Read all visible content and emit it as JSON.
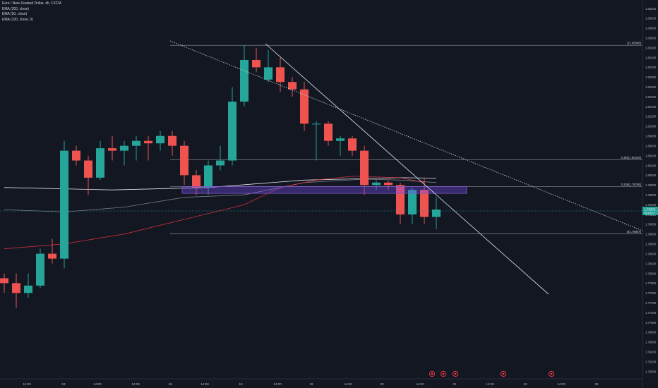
{
  "chart_data": {
    "type": "candlestick",
    "title": "Euro / New Zealand Dollar, 4h, FXCM",
    "indicators": [
      "EMA (200, close)",
      "EMA (50, close)",
      "EMA (100, close, 0)"
    ],
    "y_ticks": [
      "1.83400",
      "1.83200",
      "1.83000",
      "1.82800",
      "1.82600",
      "1.82400",
      "1.82200",
      "1.82000",
      "1.81800",
      "1.81600",
      "1.81400",
      "1.81200",
      "1.81000",
      "1.80800",
      "1.80600",
      "1.80400",
      "1.80200",
      "1.80000",
      "1.79800",
      "1.79600",
      "1.79400",
      "1.79200",
      "1.79000",
      "1.78800",
      "1.78600",
      "1.78400",
      "1.78200",
      "1.78000",
      "1.77800",
      "1.77600",
      "1.77400",
      "1.77200",
      "1.77000",
      "1.76800",
      "1.76600",
      "1.76400",
      "1.76200",
      "1.76000"
    ],
    "x_ticks": [
      "14:00",
      "13",
      "14:00",
      "14:00",
      "15",
      "14:00",
      "18",
      "14:00",
      "19",
      "14:00",
      "20",
      "14:00",
      "21",
      "14:00",
      "22",
      "14:00",
      "25"
    ],
    "ylim": [
      1.7595,
      1.835
    ],
    "current_price": "1.79272",
    "current_price_sub": "03:14:27",
    "fib_levels": [
      {
        "label": "1(1.82648)",
        "value": 1.82648
      },
      {
        "label": "0.382(1.80316)",
        "value": 1.80316
      },
      {
        "label": "0.236(1.79766)",
        "value": 1.79766
      },
      {
        "label": "0(1.78807)",
        "value": 1.78807
      }
    ],
    "candles": [
      {
        "o": 1.779,
        "h": 1.78,
        "l": 1.776,
        "c": 1.778
      },
      {
        "o": 1.778,
        "h": 1.78,
        "l": 1.773,
        "c": 1.776
      },
      {
        "o": 1.776,
        "h": 1.78,
        "l": 1.775,
        "c": 1.7775
      },
      {
        "o": 1.7775,
        "h": 1.785,
        "l": 1.777,
        "c": 1.784
      },
      {
        "o": 1.784,
        "h": 1.787,
        "l": 1.782,
        "c": 1.783
      },
      {
        "o": 1.783,
        "h": 1.807,
        "l": 1.781,
        "c": 1.805
      },
      {
        "o": 1.805,
        "h": 1.806,
        "l": 1.802,
        "c": 1.803
      },
      {
        "o": 1.803,
        "h": 1.804,
        "l": 1.796,
        "c": 1.7995
      },
      {
        "o": 1.7995,
        "h": 1.807,
        "l": 1.799,
        "c": 1.8055
      },
      {
        "o": 1.8055,
        "h": 1.808,
        "l": 1.803,
        "c": 1.805
      },
      {
        "o": 1.805,
        "h": 1.807,
        "l": 1.802,
        "c": 1.806
      },
      {
        "o": 1.806,
        "h": 1.808,
        "l": 1.803,
        "c": 1.807
      },
      {
        "o": 1.807,
        "h": 1.808,
        "l": 1.803,
        "c": 1.8065
      },
      {
        "o": 1.8065,
        "h": 1.809,
        "l": 1.805,
        "c": 1.808
      },
      {
        "o": 1.808,
        "h": 1.809,
        "l": 1.804,
        "c": 1.806
      },
      {
        "o": 1.806,
        "h": 1.807,
        "l": 1.798,
        "c": 1.8
      },
      {
        "o": 1.8,
        "h": 1.801,
        "l": 1.796,
        "c": 1.7975
      },
      {
        "o": 1.7975,
        "h": 1.803,
        "l": 1.796,
        "c": 1.802
      },
      {
        "o": 1.802,
        "h": 1.806,
        "l": 1.801,
        "c": 1.803
      },
      {
        "o": 1.803,
        "h": 1.818,
        "l": 1.802,
        "c": 1.815
      },
      {
        "o": 1.815,
        "h": 1.8265,
        "l": 1.814,
        "c": 1.8235
      },
      {
        "o": 1.8235,
        "h": 1.826,
        "l": 1.821,
        "c": 1.822
      },
      {
        "o": 1.8195,
        "h": 1.8255,
        "l": 1.819,
        "c": 1.822
      },
      {
        "o": 1.822,
        "h": 1.824,
        "l": 1.817,
        "c": 1.819
      },
      {
        "o": 1.819,
        "h": 1.82,
        "l": 1.816,
        "c": 1.8175
      },
      {
        "o": 1.8175,
        "h": 1.819,
        "l": 1.809,
        "c": 1.8105
      },
      {
        "o": 1.8105,
        "h": 1.811,
        "l": 1.803,
        "c": 1.8105
      },
      {
        "o": 1.8105,
        "h": 1.811,
        "l": 1.806,
        "c": 1.807
      },
      {
        "o": 1.807,
        "h": 1.808,
        "l": 1.804,
        "c": 1.8075
      },
      {
        "o": 1.8075,
        "h": 1.808,
        "l": 1.804,
        "c": 1.805
      },
      {
        "o": 1.805,
        "h": 1.806,
        "l": 1.796,
        "c": 1.798
      },
      {
        "o": 1.798,
        "h": 1.799,
        "l": 1.797,
        "c": 1.7985
      },
      {
        "o": 1.7985,
        "h": 1.799,
        "l": 1.797,
        "c": 1.798
      },
      {
        "o": 1.798,
        "h": 1.7985,
        "l": 1.79,
        "c": 1.792
      },
      {
        "o": 1.792,
        "h": 1.7975,
        "l": 1.79,
        "c": 1.797
      },
      {
        "o": 1.797,
        "h": 1.7995,
        "l": 1.79,
        "c": 1.7915
      },
      {
        "o": 1.7915,
        "h": 1.7955,
        "l": 1.789,
        "c": 1.793
      }
    ],
    "ema": {
      "ema200": [
        [
          0,
          1.7975
        ],
        [
          9,
          1.797
        ],
        [
          17,
          1.7975
        ],
        [
          25,
          1.799
        ],
        [
          33,
          1.7995
        ],
        [
          36,
          1.7994
        ]
      ],
      "ema50": [
        [
          0,
          1.793
        ],
        [
          5,
          1.7925
        ],
        [
          10,
          1.7935
        ],
        [
          15,
          1.7955
        ],
        [
          20,
          1.796
        ],
        [
          25,
          1.7985
        ],
        [
          30,
          1.7992
        ],
        [
          33,
          1.799
        ],
        [
          36,
          1.7985
        ]
      ],
      "ema100": [
        [
          0,
          1.785
        ],
        [
          5,
          1.786
        ],
        [
          10,
          1.788
        ],
        [
          15,
          1.791
        ],
        [
          20,
          1.794
        ],
        [
          23,
          1.7975
        ],
        [
          26,
          1.799
        ],
        [
          29,
          1.7998
        ],
        [
          33,
          1.7995
        ],
        [
          35,
          1.7985
        ]
      ]
    }
  }
}
